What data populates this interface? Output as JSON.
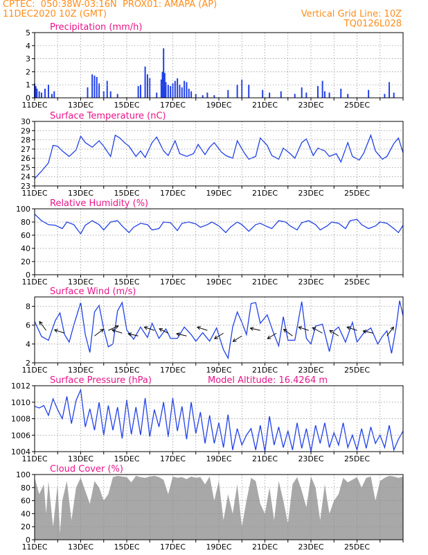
{
  "header": {
    "line1": "CPTEC:  050:38W-03:16N  PROX01: AMAPA (AP)",
    "line2": "11DEC2020 10Z (GMT)",
    "right1": "Vertical Grid Line: 10Z",
    "right2": "TQ0126L028"
  },
  "x_tick_labels": [
    "11DEC",
    "13DEC",
    "15DEC",
    "17DEC",
    "19DEC",
    "21DEC",
    "23DEC",
    "25DEC"
  ],
  "colors": {
    "header": "#ff8c1a",
    "title": "#e8158a",
    "series": "#2040e8",
    "cloud": "#a8a8a8"
  },
  "chart_data": [
    {
      "type": "bar",
      "title": "Precipitation (mm/h)",
      "ylim": [
        0,
        5
      ],
      "yticks": [
        0,
        1,
        2,
        3,
        4,
        5
      ],
      "x_days": [
        0,
        0.05,
        0.1,
        0.2,
        0.3,
        0.45,
        0.6,
        0.75,
        0.85,
        2.3,
        2.5,
        2.6,
        2.7,
        2.8,
        3.0,
        3.15,
        3.3,
        3.6,
        4.5,
        4.6,
        4.8,
        4.9,
        5.0,
        5.3,
        5.5,
        5.55,
        5.6,
        5.65,
        5.7,
        5.8,
        5.9,
        6.0,
        6.1,
        6.2,
        6.3,
        6.4,
        6.5,
        6.6,
        6.7,
        6.8,
        7.0,
        7.3,
        7.5,
        7.8,
        8.4,
        8.8,
        9.0,
        9.3,
        9.9,
        10.2,
        10.7,
        11.3,
        11.6,
        11.8,
        12.3,
        12.5,
        12.6,
        12.8,
        13.3,
        13.6,
        14.5,
        15.2,
        15.4,
        15.6
      ],
      "values": [
        1.1,
        0.9,
        0.7,
        0.5,
        0.4,
        0.7,
        1.0,
        0.3,
        0.5,
        0.8,
        1.8,
        1.7,
        1.6,
        1.1,
        0.5,
        1.3,
        0.5,
        0.3,
        0.9,
        1.0,
        2.4,
        1.8,
        1.5,
        0.4,
        1.4,
        2.0,
        3.8,
        1.9,
        1.2,
        1.0,
        0.9,
        1.1,
        1.3,
        1.5,
        1.0,
        0.8,
        1.3,
        1.2,
        0.7,
        0.5,
        0.3,
        0.2,
        0.4,
        0.2,
        0.6,
        1.0,
        1.4,
        1.0,
        0.6,
        0.4,
        0.5,
        0.3,
        0.8,
        0.4,
        0.9,
        1.3,
        0.5,
        0.4,
        0.7,
        0.3,
        0.6,
        0.3,
        1.2,
        0.4
      ]
    },
    {
      "type": "line",
      "title": "Surface Temperature (nC)",
      "ylim": [
        23,
        30
      ],
      "yticks": [
        23,
        24,
        25,
        26,
        27,
        28,
        29,
        30
      ],
      "x_days": [
        0,
        0.3,
        0.6,
        0.8,
        1.0,
        1.2,
        1.5,
        1.8,
        2.0,
        2.2,
        2.5,
        2.8,
        3.0,
        3.3,
        3.5,
        3.7,
        3.9,
        4.1,
        4.4,
        4.6,
        4.8,
        5.1,
        5.3,
        5.6,
        5.8,
        6.1,
        6.3,
        6.6,
        6.9,
        7.1,
        7.4,
        7.6,
        7.8,
        8.1,
        8.3,
        8.6,
        8.8,
        9.1,
        9.3,
        9.6,
        9.8,
        10.1,
        10.3,
        10.6,
        10.8,
        11.1,
        11.3,
        11.6,
        11.8,
        12.1,
        12.3,
        12.6,
        12.8,
        13.1,
        13.3,
        13.6,
        13.8,
        14.1,
        14.3,
        14.6,
        14.8,
        15.1,
        15.3,
        15.6,
        15.8,
        16.0
      ],
      "values": [
        23.8,
        24.6,
        25.5,
        27.4,
        27.3,
        26.8,
        26.2,
        26.9,
        28.4,
        27.7,
        27.2,
        27.9,
        27.3,
        26.2,
        28.5,
        28.2,
        27.7,
        27.3,
        26.2,
        26.8,
        26.1,
        27.7,
        28.3,
        26.8,
        26.3,
        27.9,
        26.5,
        26.2,
        26.5,
        27.5,
        26.4,
        27.2,
        27.7,
        26.7,
        26.3,
        26.0,
        27.9,
        26.6,
        25.9,
        26.2,
        28.2,
        27.4,
        26.3,
        25.9,
        27.1,
        26.5,
        26.0,
        27.7,
        28.1,
        26.3,
        27.1,
        26.8,
        26.2,
        26.5,
        25.6,
        27.7,
        26.2,
        25.8,
        26.6,
        28.5,
        26.8,
        25.9,
        26.2,
        27.6,
        28.2,
        26.6
      ]
    },
    {
      "type": "line",
      "title": "Relative Humidity (%)",
      "ylim": [
        0,
        100
      ],
      "yticks": [
        0,
        20,
        40,
        60,
        80,
        100
      ],
      "x_days": [
        0,
        0.3,
        0.6,
        0.9,
        1.2,
        1.4,
        1.7,
        2.0,
        2.2,
        2.5,
        2.8,
        3.0,
        3.3,
        3.6,
        3.8,
        4.1,
        4.3,
        4.6,
        4.9,
        5.1,
        5.4,
        5.6,
        5.9,
        6.2,
        6.4,
        6.7,
        7.0,
        7.2,
        7.5,
        7.7,
        8.0,
        8.3,
        8.5,
        8.8,
        9.0,
        9.3,
        9.6,
        9.8,
        10.1,
        10.3,
        10.6,
        10.9,
        11.1,
        11.4,
        11.6,
        11.9,
        12.2,
        12.4,
        12.7,
        12.9,
        13.2,
        13.5,
        13.7,
        14.0,
        14.2,
        14.5,
        14.8,
        15.0,
        15.3,
        15.6,
        15.8,
        16.0
      ],
      "values": [
        92,
        82,
        76,
        75,
        70,
        80,
        76,
        62,
        75,
        82,
        76,
        68,
        80,
        82,
        74,
        64,
        72,
        78,
        76,
        68,
        70,
        80,
        79,
        67,
        78,
        80,
        77,
        72,
        76,
        80,
        74,
        64,
        72,
        80,
        76,
        66,
        76,
        78,
        73,
        70,
        82,
        80,
        74,
        68,
        79,
        82,
        76,
        68,
        74,
        80,
        78,
        70,
        82,
        84,
        76,
        70,
        74,
        80,
        78,
        70,
        64,
        75
      ]
    },
    {
      "type": "line",
      "title": "Surface Wind (m/s)",
      "ylim": [
        2,
        9
      ],
      "yticks": [
        2,
        4,
        6,
        8
      ],
      "x_days": [
        0,
        0.3,
        0.6,
        0.9,
        1.1,
        1.3,
        1.5,
        1.7,
        2.0,
        2.2,
        2.4,
        2.6,
        2.8,
        3.0,
        3.2,
        3.4,
        3.6,
        3.8,
        4.0,
        4.3,
        4.6,
        4.9,
        5.1,
        5.4,
        5.7,
        5.9,
        6.2,
        6.5,
        6.8,
        7.0,
        7.3,
        7.6,
        7.9,
        8.2,
        8.4,
        8.6,
        8.8,
        9.0,
        9.2,
        9.4,
        9.6,
        9.8,
        10.1,
        10.4,
        10.6,
        10.8,
        11.0,
        11.3,
        11.6,
        11.8,
        12.0,
        12.2,
        12.5,
        12.8,
        13.0,
        13.2,
        13.5,
        13.8,
        14.0,
        14.3,
        14.6,
        14.9,
        15.1,
        15.3,
        15.5,
        15.7,
        15.85,
        16.0
      ],
      "values": [
        6.4,
        4.8,
        4.4,
        6.5,
        7.3,
        5.0,
        4.2,
        6.0,
        8.4,
        5.0,
        3.1,
        7.4,
        8.1,
        5.6,
        3.7,
        4.0,
        7.5,
        8.4,
        5.5,
        4.5,
        5.8,
        4.7,
        6.2,
        4.6,
        5.6,
        4.6,
        4.6,
        5.8,
        5.0,
        4.3,
        5.2,
        4.3,
        5.7,
        3.4,
        2.5,
        5.8,
        7.4,
        6.3,
        5.0,
        8.3,
        8.4,
        6.2,
        7.1,
        5.0,
        3.8,
        6.9,
        4.4,
        4.4,
        8.5,
        4.6,
        4.0,
        5.9,
        6.1,
        3.2,
        5.4,
        5.8,
        4.2,
        6.3,
        4.2,
        5.2,
        5.7,
        4.0,
        4.8,
        5.4,
        3.0,
        5.8,
        8.6,
        7.0
      ]
    },
    {
      "type": "line",
      "title": "Surface Pressure (hPa)",
      "annotation": "Model Altitude: 16.4264 m",
      "ylim": [
        1004,
        1012
      ],
      "yticks": [
        1004,
        1006,
        1008,
        1010,
        1012
      ],
      "x_days": [
        0,
        0.2,
        0.4,
        0.6,
        0.8,
        1.0,
        1.2,
        1.4,
        1.6,
        1.8,
        2.0,
        2.2,
        2.4,
        2.6,
        2.8,
        3.0,
        3.2,
        3.4,
        3.6,
        3.8,
        4.0,
        4.2,
        4.4,
        4.6,
        4.8,
        5.0,
        5.2,
        5.4,
        5.6,
        5.8,
        6.0,
        6.2,
        6.4,
        6.6,
        6.8,
        7.0,
        7.2,
        7.4,
        7.6,
        7.8,
        8.0,
        8.2,
        8.4,
        8.6,
        8.8,
        9.0,
        9.2,
        9.4,
        9.6,
        9.8,
        10.0,
        10.2,
        10.4,
        10.6,
        10.8,
        11.0,
        11.2,
        11.4,
        11.6,
        11.8,
        12.0,
        12.2,
        12.4,
        12.6,
        12.8,
        13.0,
        13.2,
        13.4,
        13.6,
        13.8,
        14.0,
        14.2,
        14.4,
        14.6,
        14.8,
        15.0,
        15.2,
        15.4,
        15.6,
        15.8,
        16.0
      ],
      "values": [
        1009.5,
        1009.3,
        1009.6,
        1008.4,
        1010.4,
        1009.1,
        1008.0,
        1010.7,
        1007.4,
        1010.2,
        1011.5,
        1007.0,
        1009.2,
        1006.6,
        1010.0,
        1006.0,
        1009.6,
        1006.6,
        1009.4,
        1005.6,
        1010.3,
        1006.1,
        1009.4,
        1006.0,
        1010.5,
        1005.8,
        1009.1,
        1007.0,
        1010.0,
        1005.8,
        1010.5,
        1006.5,
        1009.5,
        1005.5,
        1010.0,
        1006.2,
        1008.8,
        1005.0,
        1008.4,
        1005.0,
        1007.5,
        1004.5,
        1008.5,
        1004.2,
        1006.8,
        1004.8,
        1006.0,
        1006.8,
        1004.2,
        1007.2,
        1004.0,
        1008.3,
        1004.8,
        1007.0,
        1004.5,
        1006.5,
        1004.2,
        1007.5,
        1004.4,
        1006.8,
        1004.0,
        1007.2,
        1005.0,
        1007.5,
        1004.5,
        1006.3,
        1004.8,
        1007.5,
        1004.5,
        1006.0,
        1004.2,
        1006.8,
        1004.4,
        1007.0,
        1005.0,
        1006.0,
        1004.5,
        1007.2,
        1004.2,
        1005.5,
        1006.5
      ]
    },
    {
      "type": "area",
      "title": "Cloud Cover (%)",
      "ylim": [
        0,
        100
      ],
      "yticks": [
        0,
        20,
        40,
        60,
        80,
        100
      ],
      "x_days": [
        0,
        0.2,
        0.4,
        0.5,
        0.6,
        0.8,
        1.0,
        1.1,
        1.2,
        1.4,
        1.6,
        1.8,
        2.0,
        2.2,
        2.4,
        2.6,
        2.8,
        3.0,
        3.2,
        3.4,
        3.6,
        3.8,
        4.0,
        4.2,
        4.4,
        4.6,
        4.8,
        5.0,
        5.2,
        5.4,
        5.6,
        5.8,
        6.0,
        6.2,
        6.4,
        6.6,
        6.8,
        7.0,
        7.2,
        7.4,
        7.6,
        7.8,
        8.0,
        8.2,
        8.4,
        8.6,
        8.8,
        9.0,
        9.2,
        9.4,
        9.6,
        9.8,
        10.0,
        10.2,
        10.4,
        10.6,
        10.8,
        11.0,
        11.2,
        11.4,
        11.6,
        11.8,
        12.0,
        12.2,
        12.4,
        12.6,
        12.8,
        13.0,
        13.2,
        13.4,
        13.6,
        13.8,
        14.0,
        14.2,
        14.4,
        14.6,
        14.8,
        15.0,
        15.2,
        15.4,
        15.6,
        15.8,
        16.0
      ],
      "values": [
        95,
        70,
        85,
        40,
        90,
        20,
        85,
        10,
        60,
        90,
        30,
        80,
        95,
        75,
        55,
        90,
        80,
        60,
        70,
        96,
        98,
        97,
        96,
        88,
        98,
        96,
        95,
        97,
        98,
        96,
        92,
        70,
        97,
        95,
        96,
        93,
        97,
        95,
        96,
        85,
        97,
        60,
        90,
        30,
        70,
        40,
        85,
        20,
        60,
        95,
        90,
        55,
        40,
        80,
        30,
        90,
        60,
        25,
        85,
        96,
        75,
        50,
        97,
        80,
        30,
        85,
        40,
        60,
        70,
        95,
        88,
        92,
        96,
        80,
        95,
        97,
        60,
        90,
        95,
        98,
        97,
        95,
        97
      ]
    },
    {
      "type": "wind_vectors",
      "note_arrows": "wind barbs along Surface Wind panel",
      "x_days": [
        0.5,
        1.3,
        2.6,
        3.2,
        3.8,
        4.5,
        5.2,
        5.8,
        6.6,
        7.5,
        8.2,
        9.0,
        9.8,
        10.5,
        11.2,
        11.9,
        12.5,
        13.2,
        14.0,
        14.7,
        15.3
      ],
      "u": [
        -0.6,
        -0.9,
        0.8,
        0.9,
        -0.9,
        -0.9,
        -0.9,
        -0.8,
        -0.9,
        -0.9,
        -0.8,
        -0.8,
        -0.9,
        -0.8,
        -0.8,
        -0.9,
        -0.9,
        -0.8,
        -0.9,
        -0.9,
        0.6
      ],
      "v": [
        0.8,
        0.3,
        0.6,
        0.4,
        0.3,
        0.2,
        0.3,
        0.4,
        0.2,
        0.3,
        -0.5,
        -0.5,
        0.2,
        -0.5,
        0.6,
        0.3,
        0.5,
        0.5,
        0.3,
        0.2,
        0.8
      ]
    }
  ]
}
